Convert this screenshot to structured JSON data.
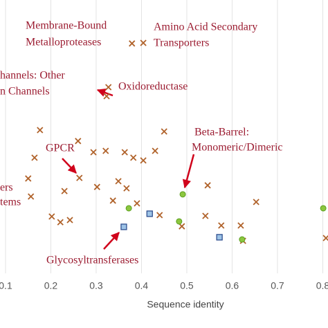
{
  "chart_data": {
    "type": "scatter",
    "x_label": "Sequence identity",
    "xlim": [
      0.0878,
      0.8115
    ],
    "ylim": [
      0,
      1
    ],
    "xticks": [
      0.1,
      0.2,
      0.3,
      0.4,
      0.5,
      0.6,
      0.7,
      0.8
    ],
    "grid": true,
    "series": [
      {
        "marker": "x",
        "color": "#b0622a",
        "x": [
          0.379,
          0.404,
          0.327,
          0.323,
          0.176,
          0.45,
          0.26,
          0.164,
          0.294,
          0.321,
          0.363,
          0.382,
          0.404,
          0.43,
          0.263,
          0.15,
          0.349,
          0.367,
          0.23,
          0.302,
          0.337,
          0.546,
          0.156,
          0.39,
          0.202,
          0.221,
          0.242,
          0.44,
          0.541,
          0.576,
          0.619,
          0.489,
          0.653,
          0.624,
          0.807
        ],
        "values": [
          0.841,
          0.843,
          0.681,
          0.648,
          0.524,
          0.519,
          0.484,
          0.423,
          0.443,
          0.448,
          0.443,
          0.423,
          0.413,
          0.448,
          0.349,
          0.347,
          0.337,
          0.311,
          0.301,
          0.316,
          0.266,
          0.322,
          0.281,
          0.256,
          0.208,
          0.187,
          0.195,
          0.213,
          0.21,
          0.175,
          0.175,
          0.172,
          0.261,
          0.119,
          0.129
        ]
      },
      {
        "marker": "circle",
        "color": "#8cc63f",
        "x": [
          0.491,
          0.372,
          0.483,
          0.622,
          0.801
        ],
        "values": [
          0.289,
          0.238,
          0.19,
          0.124,
          0.238
        ]
      },
      {
        "marker": "square",
        "color": "#9dc3e6",
        "x": [
          0.418,
          0.361,
          0.572
        ],
        "values": [
          0.218,
          0.17,
          0.132
        ]
      }
    ],
    "annotations": [
      "Membrane-Bound",
      "Metalloproteases",
      "Amino Acid Secondary",
      "Transporters",
      "hannels: Other",
      "n Channels",
      "Oxidoreductase",
      "Beta-Barrel:",
      "Monomeric/Dimeric",
      "GPCR",
      "ers",
      "tems",
      "Glycosyltransferases"
    ]
  }
}
